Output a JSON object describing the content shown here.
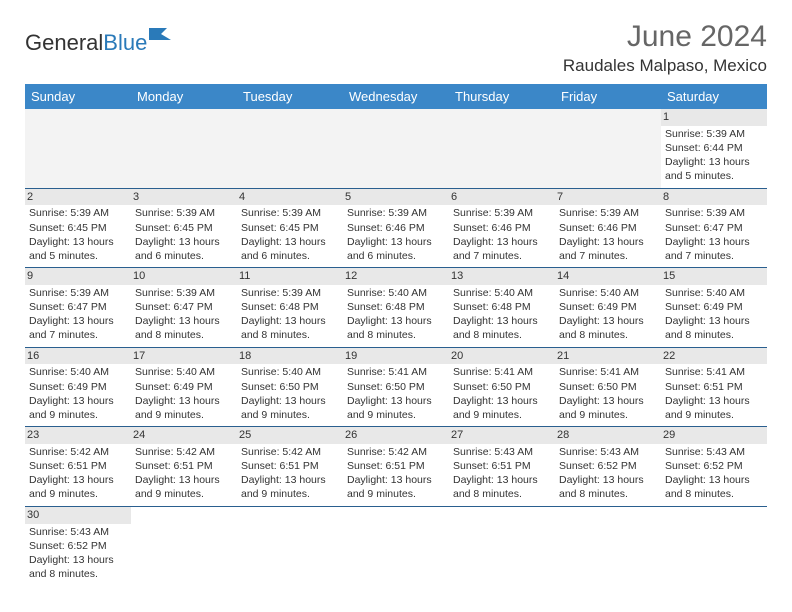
{
  "logo": {
    "text1": "General",
    "text2": "Blue"
  },
  "title": "June 2024",
  "location": "Raudales Malpaso, Mexico",
  "colors": {
    "header_bg": "#3b87c8",
    "header_text": "#ffffff",
    "border": "#2a5f8f",
    "daynum_bg": "#e8e8e8",
    "logo_blue": "#2a7ab9"
  },
  "weekdays": [
    "Sunday",
    "Monday",
    "Tuesday",
    "Wednesday",
    "Thursday",
    "Friday",
    "Saturday"
  ],
  "weeks": [
    [
      null,
      null,
      null,
      null,
      null,
      null,
      {
        "n": "1",
        "sr": "Sunrise: 5:39 AM",
        "ss": "Sunset: 6:44 PM",
        "dl": "Daylight: 13 hours and 5 minutes."
      }
    ],
    [
      {
        "n": "2",
        "sr": "Sunrise: 5:39 AM",
        "ss": "Sunset: 6:45 PM",
        "dl": "Daylight: 13 hours and 5 minutes."
      },
      {
        "n": "3",
        "sr": "Sunrise: 5:39 AM",
        "ss": "Sunset: 6:45 PM",
        "dl": "Daylight: 13 hours and 6 minutes."
      },
      {
        "n": "4",
        "sr": "Sunrise: 5:39 AM",
        "ss": "Sunset: 6:45 PM",
        "dl": "Daylight: 13 hours and 6 minutes."
      },
      {
        "n": "5",
        "sr": "Sunrise: 5:39 AM",
        "ss": "Sunset: 6:46 PM",
        "dl": "Daylight: 13 hours and 6 minutes."
      },
      {
        "n": "6",
        "sr": "Sunrise: 5:39 AM",
        "ss": "Sunset: 6:46 PM",
        "dl": "Daylight: 13 hours and 7 minutes."
      },
      {
        "n": "7",
        "sr": "Sunrise: 5:39 AM",
        "ss": "Sunset: 6:46 PM",
        "dl": "Daylight: 13 hours and 7 minutes."
      },
      {
        "n": "8",
        "sr": "Sunrise: 5:39 AM",
        "ss": "Sunset: 6:47 PM",
        "dl": "Daylight: 13 hours and 7 minutes."
      }
    ],
    [
      {
        "n": "9",
        "sr": "Sunrise: 5:39 AM",
        "ss": "Sunset: 6:47 PM",
        "dl": "Daylight: 13 hours and 7 minutes."
      },
      {
        "n": "10",
        "sr": "Sunrise: 5:39 AM",
        "ss": "Sunset: 6:47 PM",
        "dl": "Daylight: 13 hours and 8 minutes."
      },
      {
        "n": "11",
        "sr": "Sunrise: 5:39 AM",
        "ss": "Sunset: 6:48 PM",
        "dl": "Daylight: 13 hours and 8 minutes."
      },
      {
        "n": "12",
        "sr": "Sunrise: 5:40 AM",
        "ss": "Sunset: 6:48 PM",
        "dl": "Daylight: 13 hours and 8 minutes."
      },
      {
        "n": "13",
        "sr": "Sunrise: 5:40 AM",
        "ss": "Sunset: 6:48 PM",
        "dl": "Daylight: 13 hours and 8 minutes."
      },
      {
        "n": "14",
        "sr": "Sunrise: 5:40 AM",
        "ss": "Sunset: 6:49 PM",
        "dl": "Daylight: 13 hours and 8 minutes."
      },
      {
        "n": "15",
        "sr": "Sunrise: 5:40 AM",
        "ss": "Sunset: 6:49 PM",
        "dl": "Daylight: 13 hours and 8 minutes."
      }
    ],
    [
      {
        "n": "16",
        "sr": "Sunrise: 5:40 AM",
        "ss": "Sunset: 6:49 PM",
        "dl": "Daylight: 13 hours and 9 minutes."
      },
      {
        "n": "17",
        "sr": "Sunrise: 5:40 AM",
        "ss": "Sunset: 6:49 PM",
        "dl": "Daylight: 13 hours and 9 minutes."
      },
      {
        "n": "18",
        "sr": "Sunrise: 5:40 AM",
        "ss": "Sunset: 6:50 PM",
        "dl": "Daylight: 13 hours and 9 minutes."
      },
      {
        "n": "19",
        "sr": "Sunrise: 5:41 AM",
        "ss": "Sunset: 6:50 PM",
        "dl": "Daylight: 13 hours and 9 minutes."
      },
      {
        "n": "20",
        "sr": "Sunrise: 5:41 AM",
        "ss": "Sunset: 6:50 PM",
        "dl": "Daylight: 13 hours and 9 minutes."
      },
      {
        "n": "21",
        "sr": "Sunrise: 5:41 AM",
        "ss": "Sunset: 6:50 PM",
        "dl": "Daylight: 13 hours and 9 minutes."
      },
      {
        "n": "22",
        "sr": "Sunrise: 5:41 AM",
        "ss": "Sunset: 6:51 PM",
        "dl": "Daylight: 13 hours and 9 minutes."
      }
    ],
    [
      {
        "n": "23",
        "sr": "Sunrise: 5:42 AM",
        "ss": "Sunset: 6:51 PM",
        "dl": "Daylight: 13 hours and 9 minutes."
      },
      {
        "n": "24",
        "sr": "Sunrise: 5:42 AM",
        "ss": "Sunset: 6:51 PM",
        "dl": "Daylight: 13 hours and 9 minutes."
      },
      {
        "n": "25",
        "sr": "Sunrise: 5:42 AM",
        "ss": "Sunset: 6:51 PM",
        "dl": "Daylight: 13 hours and 9 minutes."
      },
      {
        "n": "26",
        "sr": "Sunrise: 5:42 AM",
        "ss": "Sunset: 6:51 PM",
        "dl": "Daylight: 13 hours and 9 minutes."
      },
      {
        "n": "27",
        "sr": "Sunrise: 5:43 AM",
        "ss": "Sunset: 6:51 PM",
        "dl": "Daylight: 13 hours and 8 minutes."
      },
      {
        "n": "28",
        "sr": "Sunrise: 5:43 AM",
        "ss": "Sunset: 6:52 PM",
        "dl": "Daylight: 13 hours and 8 minutes."
      },
      {
        "n": "29",
        "sr": "Sunrise: 5:43 AM",
        "ss": "Sunset: 6:52 PM",
        "dl": "Daylight: 13 hours and 8 minutes."
      }
    ],
    [
      {
        "n": "30",
        "sr": "Sunrise: 5:43 AM",
        "ss": "Sunset: 6:52 PM",
        "dl": "Daylight: 13 hours and 8 minutes."
      },
      null,
      null,
      null,
      null,
      null,
      null
    ]
  ]
}
